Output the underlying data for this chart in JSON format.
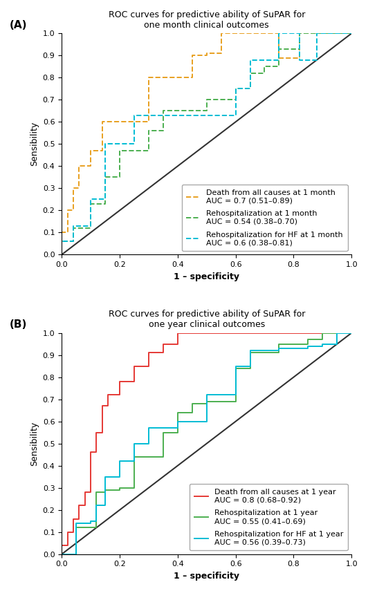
{
  "panel_A": {
    "title": "ROC curves for predictive ability of SuPAR for\none month clinical outcomes",
    "curves": [
      {
        "label": "Death from all causes at 1 month\nAUC = 0.7 (0.51–0.89)",
        "color": "#E8A020",
        "linestyle": "--",
        "x": [
          0.0,
          0.0,
          0.02,
          0.02,
          0.04,
          0.04,
          0.06,
          0.06,
          0.1,
          0.1,
          0.14,
          0.14,
          0.3,
          0.3,
          0.45,
          0.45,
          0.5,
          0.5,
          0.55,
          0.55,
          0.65,
          0.65,
          0.75,
          0.75,
          0.82,
          0.82,
          1.0
        ],
        "y": [
          0.0,
          0.1,
          0.1,
          0.2,
          0.2,
          0.3,
          0.3,
          0.4,
          0.4,
          0.47,
          0.47,
          0.6,
          0.6,
          0.8,
          0.8,
          0.9,
          0.9,
          0.91,
          0.91,
          1.0,
          1.0,
          1.0,
          1.0,
          0.89,
          0.89,
          1.0,
          1.0
        ]
      },
      {
        "label": "Rehospitalization at 1 month\nAUC = 0.54 (0.38–0.70)",
        "color": "#4CAF50",
        "linestyle": "--",
        "x": [
          0.0,
          0.0,
          0.04,
          0.04,
          0.1,
          0.1,
          0.15,
          0.15,
          0.2,
          0.2,
          0.25,
          0.25,
          0.3,
          0.3,
          0.35,
          0.35,
          0.45,
          0.45,
          0.5,
          0.5,
          0.6,
          0.6,
          0.65,
          0.65,
          0.7,
          0.7,
          0.75,
          0.75,
          0.82,
          0.82,
          1.0
        ],
        "y": [
          0.0,
          0.06,
          0.06,
          0.12,
          0.12,
          0.23,
          0.23,
          0.35,
          0.35,
          0.47,
          0.47,
          0.47,
          0.47,
          0.56,
          0.56,
          0.65,
          0.65,
          0.65,
          0.65,
          0.7,
          0.7,
          0.75,
          0.75,
          0.82,
          0.82,
          0.85,
          0.85,
          0.93,
          0.93,
          1.0,
          1.0
        ]
      },
      {
        "label": "Rehospitalization for HF at 1 month\nAUC = 0.6 (0.38–0.81)",
        "color": "#00BCD4",
        "linestyle": "--",
        "x": [
          0.0,
          0.0,
          0.04,
          0.04,
          0.1,
          0.1,
          0.15,
          0.15,
          0.2,
          0.2,
          0.25,
          0.25,
          0.3,
          0.3,
          0.6,
          0.6,
          0.65,
          0.65,
          0.75,
          0.75,
          0.82,
          0.82,
          0.88,
          0.88,
          1.0
        ],
        "y": [
          0.0,
          0.06,
          0.06,
          0.13,
          0.13,
          0.25,
          0.25,
          0.5,
          0.5,
          0.5,
          0.5,
          0.63,
          0.63,
          0.63,
          0.63,
          0.75,
          0.75,
          0.88,
          0.88,
          1.0,
          1.0,
          0.88,
          0.88,
          1.0,
          1.0
        ]
      }
    ]
  },
  "panel_B": {
    "title": "ROC curves for predictive ability of SuPAR for\none year clinical outcomes",
    "curves": [
      {
        "label": "Death from all causes at 1 year\nAUC = 0.8 (0.68–0.92)",
        "color": "#E53935",
        "linestyle": "-",
        "x": [
          0.0,
          0.0,
          0.02,
          0.02,
          0.04,
          0.04,
          0.06,
          0.06,
          0.08,
          0.08,
          0.1,
          0.1,
          0.12,
          0.12,
          0.14,
          0.14,
          0.16,
          0.16,
          0.2,
          0.2,
          0.25,
          0.25,
          0.3,
          0.3,
          0.35,
          0.35,
          0.4,
          0.4,
          0.5,
          0.5,
          0.6,
          0.6,
          0.7,
          0.7,
          1.0
        ],
        "y": [
          0.0,
          0.04,
          0.04,
          0.1,
          0.1,
          0.16,
          0.16,
          0.22,
          0.22,
          0.28,
          0.28,
          0.46,
          0.46,
          0.55,
          0.55,
          0.67,
          0.67,
          0.72,
          0.72,
          0.78,
          0.78,
          0.85,
          0.85,
          0.91,
          0.91,
          0.95,
          0.95,
          1.0,
          1.0,
          1.0,
          1.0,
          1.0,
          1.0,
          1.0,
          1.0
        ]
      },
      {
        "label": "Rehospitalization at 1 year\nAUC = 0.55 (0.41–0.69)",
        "color": "#4CAF50",
        "linestyle": "-",
        "x": [
          0.0,
          0.0,
          0.05,
          0.05,
          0.1,
          0.1,
          0.12,
          0.12,
          0.15,
          0.15,
          0.2,
          0.2,
          0.25,
          0.25,
          0.3,
          0.3,
          0.35,
          0.35,
          0.4,
          0.4,
          0.45,
          0.45,
          0.5,
          0.5,
          0.55,
          0.55,
          0.6,
          0.6,
          0.65,
          0.65,
          0.7,
          0.7,
          0.75,
          0.75,
          0.8,
          0.8,
          0.85,
          0.85,
          0.9,
          0.9,
          0.95,
          0.95,
          1.0
        ],
        "y": [
          0.0,
          0.0,
          0.0,
          0.12,
          0.12,
          0.12,
          0.12,
          0.28,
          0.28,
          0.29,
          0.29,
          0.3,
          0.3,
          0.44,
          0.44,
          0.44,
          0.44,
          0.55,
          0.55,
          0.64,
          0.64,
          0.68,
          0.68,
          0.69,
          0.69,
          0.69,
          0.69,
          0.84,
          0.84,
          0.91,
          0.91,
          0.91,
          0.91,
          0.95,
          0.95,
          0.95,
          0.95,
          0.97,
          0.97,
          1.0,
          1.0,
          1.0,
          1.0
        ]
      },
      {
        "label": "Rehospitalization for HF at 1 year\nAUC = 0.56 (0.39–0.73)",
        "color": "#00BCD4",
        "linestyle": "-",
        "x": [
          0.0,
          0.0,
          0.05,
          0.05,
          0.1,
          0.1,
          0.12,
          0.12,
          0.15,
          0.15,
          0.2,
          0.2,
          0.25,
          0.25,
          0.3,
          0.3,
          0.35,
          0.35,
          0.4,
          0.4,
          0.45,
          0.45,
          0.5,
          0.5,
          0.55,
          0.55,
          0.6,
          0.6,
          0.65,
          0.65,
          0.7,
          0.7,
          0.75,
          0.75,
          0.8,
          0.8,
          0.85,
          0.85,
          0.9,
          0.9,
          0.95,
          0.95,
          1.0
        ],
        "y": [
          0.0,
          0.0,
          0.0,
          0.14,
          0.14,
          0.15,
          0.15,
          0.22,
          0.22,
          0.35,
          0.35,
          0.42,
          0.42,
          0.5,
          0.5,
          0.57,
          0.57,
          0.57,
          0.57,
          0.6,
          0.6,
          0.6,
          0.6,
          0.72,
          0.72,
          0.72,
          0.72,
          0.85,
          0.85,
          0.92,
          0.92,
          0.92,
          0.92,
          0.93,
          0.93,
          0.93,
          0.93,
          0.94,
          0.94,
          0.95,
          0.95,
          1.0,
          1.0
        ]
      }
    ]
  },
  "xlabel": "1 – specificity",
  "ylabel": "Sensibility",
  "diagonal_color": "#333333",
  "background_color": "#ffffff",
  "legend_fontsize": 8,
  "tick_fontsize": 8,
  "label_fontsize": 9,
  "title_fontsize": 9
}
